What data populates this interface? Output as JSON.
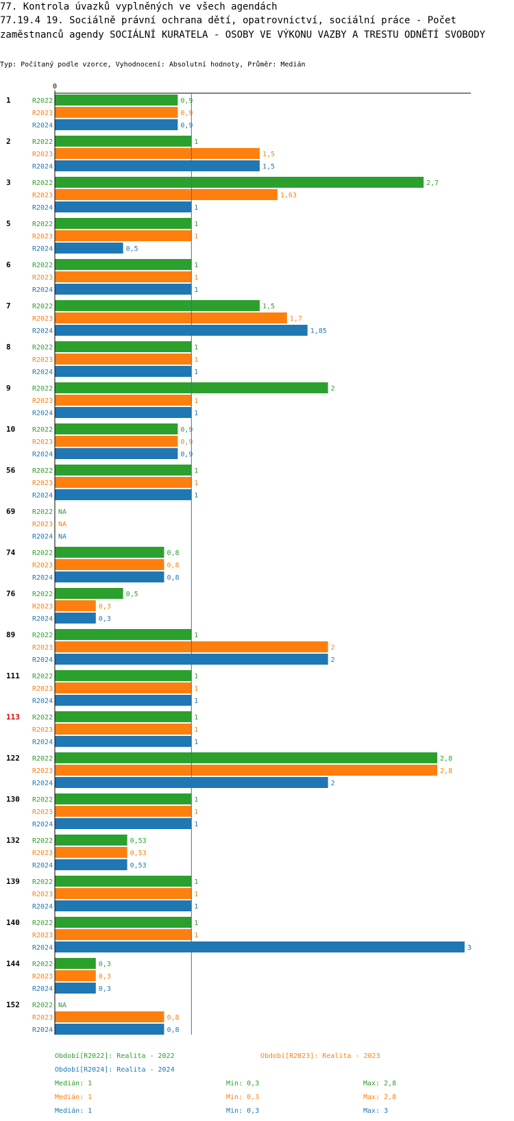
{
  "header": {
    "title_line1": "77. Kontrola úvazků vyplněných ve všech agendách",
    "title_line2": "77.19.4 19.  Sociálně právní ochrana dětí, opatrovnictví, sociální práce - Počet zaměstnanců agendy SOCIÁLNÍ KURATELA - OSOBY VE VÝKONU VAZBY A TRESTU ODNĚTÍ SVOBODY",
    "subtitle": "Typ: Počítaný podle vzorce, Vyhodnocení: Absolutní hodnoty, Průměr: Medián"
  },
  "colors": {
    "R2022": "#2ca02c",
    "R2023": "#ff7f0e",
    "R2024": "#1f77b4",
    "highlight": "#e00000",
    "median_line": "#1f77b4"
  },
  "chart_data": {
    "type": "bar",
    "orientation": "horizontal",
    "axis_zero_label": "0",
    "xlim": [
      0,
      3
    ],
    "median_line_value": 1,
    "na_label": "NA",
    "categories": [
      "1",
      "2",
      "3",
      "5",
      "6",
      "7",
      "8",
      "9",
      "10",
      "56",
      "69",
      "74",
      "76",
      "89",
      "111",
      "113",
      "122",
      "130",
      "132",
      "139",
      "140",
      "144",
      "152"
    ],
    "highlighted_category": "113",
    "series": [
      {
        "name": "R2022",
        "values": [
          0.9,
          1,
          2.7,
          1,
          1,
          1.5,
          1,
          2,
          0.9,
          1,
          null,
          0.8,
          0.5,
          1,
          1,
          1,
          2.8,
          1,
          0.53,
          1,
          1,
          0.3,
          null
        ],
        "labels": [
          "0,9",
          "1",
          "2,7",
          "1",
          "1",
          "1,5",
          "1",
          "2",
          "0,9",
          "1",
          "NA",
          "0,8",
          "0,5",
          "1",
          "1",
          "1",
          "2,8",
          "1",
          "0,53",
          "1",
          "1",
          "0,3",
          "NA"
        ]
      },
      {
        "name": "R2023",
        "values": [
          0.9,
          1.5,
          1.63,
          1,
          1,
          1.7,
          1,
          1,
          0.9,
          1,
          null,
          0.8,
          0.3,
          2,
          1,
          1,
          2.8,
          1,
          0.53,
          1,
          1,
          0.3,
          0.8
        ],
        "labels": [
          "0,9",
          "1,5",
          "1,63",
          "1",
          "1",
          "1,7",
          "1",
          "1",
          "0,9",
          "1",
          "NA",
          "0,8",
          "0,3",
          "2",
          "1",
          "1",
          "2,8",
          "1",
          "0,53",
          "1",
          "1",
          "0,3",
          "0,8"
        ]
      },
      {
        "name": "R2024",
        "values": [
          0.9,
          1.5,
          1,
          0.5,
          1,
          1.85,
          1,
          1,
          0.9,
          1,
          null,
          0.8,
          0.3,
          2,
          1,
          1,
          2,
          1,
          0.53,
          1,
          3,
          0.3,
          0.8
        ],
        "labels": [
          "0,9",
          "1,5",
          "1",
          "0,5",
          "1",
          "1,85",
          "1",
          "1",
          "0,9",
          "1",
          "NA",
          "0,8",
          "0,3",
          "2",
          "1",
          "1",
          "2",
          "1",
          "0,53",
          "1",
          "3",
          "0,3",
          "0,8"
        ]
      }
    ]
  },
  "legend": {
    "entries": [
      "Období[R2022]: Realita - 2022",
      "Období[R2023]: Realita - 2023",
      "Období[R2024]: Realita - 2024"
    ],
    "stats": [
      {
        "median": "Medián: 1",
        "min": "Min: 0,3",
        "max": "Max: 2,8"
      },
      {
        "median": "Medián: 1",
        "min": "Min: 0,3",
        "max": "Max: 2,8"
      },
      {
        "median": "Medián: 1",
        "min": "Min: 0,3",
        "max": "Max: 3"
      }
    ]
  }
}
